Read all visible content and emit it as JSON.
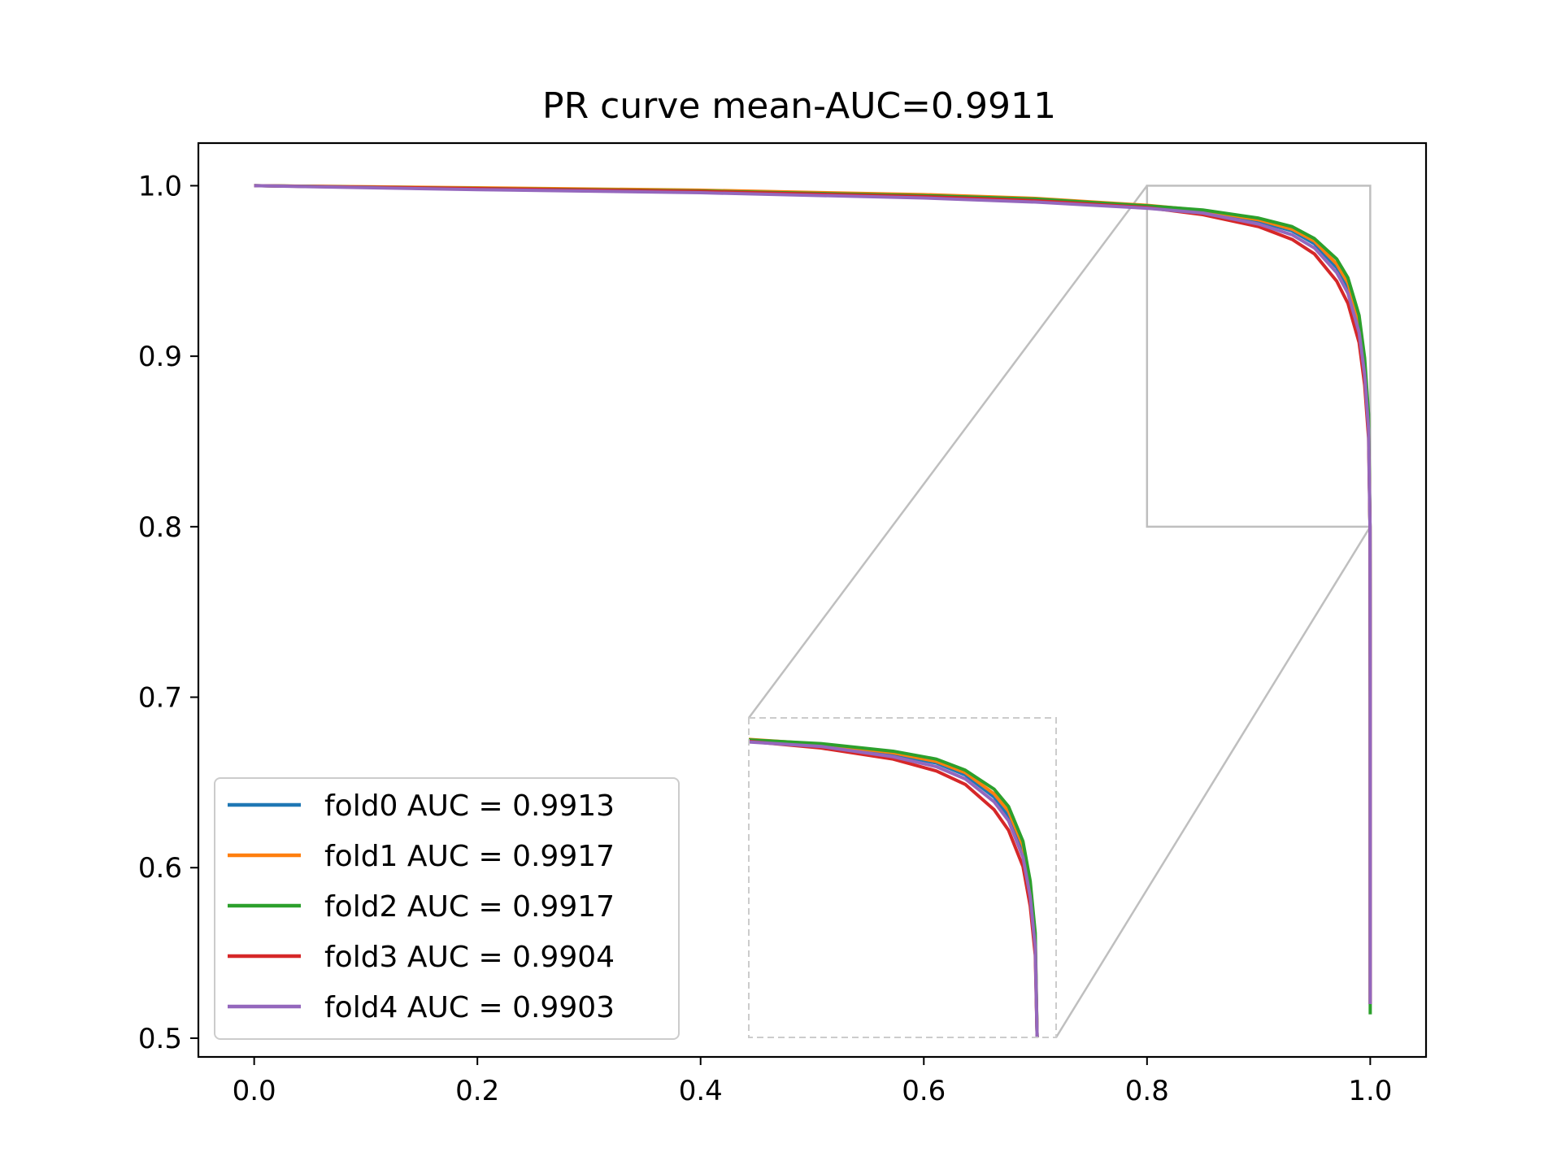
{
  "chart_data": {
    "type": "line",
    "title": "PR curve mean-AUC=0.9911",
    "xlabel": "",
    "ylabel": "",
    "xlim": [
      -0.05,
      1.05
    ],
    "ylim": [
      0.489,
      1.025
    ],
    "x_ticks": [
      0.0,
      0.2,
      0.4,
      0.6,
      0.8,
      1.0
    ],
    "x_tick_labels": [
      "0.0",
      "0.2",
      "0.4",
      "0.6",
      "0.8",
      "1.0"
    ],
    "y_ticks": [
      0.5,
      0.6,
      0.7,
      0.8,
      0.9,
      1.0
    ],
    "y_tick_labels": [
      "0.5",
      "0.6",
      "0.7",
      "0.8",
      "0.9",
      "1.0"
    ],
    "grid": false,
    "legend_position": "bottom-left",
    "series": [
      {
        "name": "fold0 AUC = 0.9913",
        "color": "#1f77b4",
        "points": [
          [
            0.0,
            1.0
          ],
          [
            0.2,
            0.9985
          ],
          [
            0.4,
            0.9968
          ],
          [
            0.6,
            0.9938
          ],
          [
            0.7,
            0.9915
          ],
          [
            0.8,
            0.988
          ],
          [
            0.85,
            0.985
          ],
          [
            0.9,
            0.979
          ],
          [
            0.93,
            0.9735
          ],
          [
            0.95,
            0.966
          ],
          [
            0.97,
            0.952
          ],
          [
            0.98,
            0.94
          ],
          [
            0.99,
            0.918
          ],
          [
            0.995,
            0.892
          ],
          [
            0.9985,
            0.86
          ],
          [
            0.9998,
            0.8
          ],
          [
            1.0,
            0.7
          ],
          [
            1.0,
            0.6
          ],
          [
            1.0,
            0.52
          ]
        ]
      },
      {
        "name": "fold1 AUC = 0.9917",
        "color": "#ff7f0e",
        "points": [
          [
            0.0,
            1.0
          ],
          [
            0.2,
            0.9988
          ],
          [
            0.4,
            0.9974
          ],
          [
            0.6,
            0.9948
          ],
          [
            0.7,
            0.9926
          ],
          [
            0.8,
            0.9885
          ],
          [
            0.85,
            0.9855
          ],
          [
            0.9,
            0.98
          ],
          [
            0.93,
            0.9745
          ],
          [
            0.95,
            0.9675
          ],
          [
            0.97,
            0.954
          ],
          [
            0.98,
            0.943
          ],
          [
            0.99,
            0.921
          ],
          [
            0.995,
            0.895
          ],
          [
            0.9985,
            0.862
          ],
          [
            0.9998,
            0.8
          ],
          [
            1.0,
            0.7
          ],
          [
            1.0,
            0.6
          ],
          [
            1.0,
            0.52
          ]
        ]
      },
      {
        "name": "fold2 AUC = 0.9917",
        "color": "#2ca02c",
        "points": [
          [
            0.0,
            1.0
          ],
          [
            0.2,
            0.9984
          ],
          [
            0.4,
            0.9969
          ],
          [
            0.6,
            0.9942
          ],
          [
            0.7,
            0.9922
          ],
          [
            0.8,
            0.9882
          ],
          [
            0.85,
            0.9858
          ],
          [
            0.9,
            0.981
          ],
          [
            0.93,
            0.976
          ],
          [
            0.95,
            0.969
          ],
          [
            0.97,
            0.957
          ],
          [
            0.98,
            0.946
          ],
          [
            0.99,
            0.924
          ],
          [
            0.995,
            0.899
          ],
          [
            0.9985,
            0.866
          ],
          [
            0.9998,
            0.8
          ],
          [
            1.0,
            0.7
          ],
          [
            1.0,
            0.6
          ],
          [
            1.0,
            0.514
          ]
        ]
      },
      {
        "name": "fold3 AUC = 0.9904",
        "color": "#d62728",
        "points": [
          [
            0.0,
            1.0
          ],
          [
            0.2,
            0.9983
          ],
          [
            0.4,
            0.9966
          ],
          [
            0.6,
            0.9936
          ],
          [
            0.7,
            0.9912
          ],
          [
            0.8,
            0.9872
          ],
          [
            0.85,
            0.983
          ],
          [
            0.9,
            0.976
          ],
          [
            0.93,
            0.9685
          ],
          [
            0.95,
            0.96
          ],
          [
            0.97,
            0.944
          ],
          [
            0.98,
            0.931
          ],
          [
            0.99,
            0.908
          ],
          [
            0.995,
            0.883
          ],
          [
            0.9985,
            0.852
          ],
          [
            0.9998,
            0.8
          ],
          [
            1.0,
            0.7
          ],
          [
            1.0,
            0.6
          ],
          [
            1.0,
            0.52
          ]
        ]
      },
      {
        "name": "fold4 AUC = 0.9903",
        "color": "#9467bd",
        "points": [
          [
            0.0,
            1.0
          ],
          [
            0.2,
            0.9977
          ],
          [
            0.4,
            0.9959
          ],
          [
            0.6,
            0.9928
          ],
          [
            0.7,
            0.9904
          ],
          [
            0.8,
            0.9868
          ],
          [
            0.85,
            0.984
          ],
          [
            0.9,
            0.9775
          ],
          [
            0.93,
            0.9712
          ],
          [
            0.95,
            0.9635
          ],
          [
            0.97,
            0.949
          ],
          [
            0.98,
            0.937
          ],
          [
            0.99,
            0.914
          ],
          [
            0.995,
            0.889
          ],
          [
            0.9985,
            0.857
          ],
          [
            0.9998,
            0.8
          ],
          [
            1.0,
            0.7
          ],
          [
            1.0,
            0.6
          ],
          [
            1.0,
            0.52
          ]
        ]
      }
    ],
    "inset": {
      "xlim": [
        0.8,
        1.0
      ],
      "ylim": [
        0.8,
        1.0
      ],
      "placement": "bottom-center",
      "style": "dashed-border"
    }
  },
  "colors": {
    "axis": "#000000",
    "zoom_indicator": "#bfbfbf",
    "inset_border": "#cccccc",
    "legend_border": "#cccccc"
  }
}
